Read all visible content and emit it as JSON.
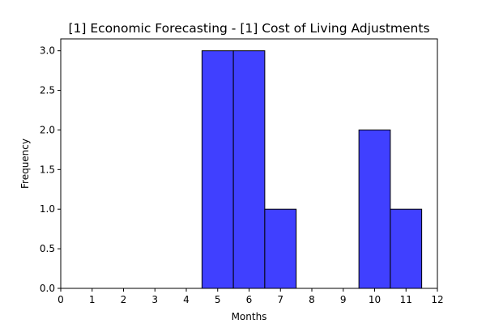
{
  "chart_data": {
    "type": "bar",
    "title": "[1] Economic Forecasting - [1] Cost of Living Adjustments",
    "xlabel": "Months",
    "ylabel": "Frequency",
    "xlim": [
      0,
      12
    ],
    "ylim": [
      0,
      3.15
    ],
    "bar_width": 1.0,
    "x": [
      5,
      6,
      7,
      8,
      9,
      10,
      11
    ],
    "values": [
      3,
      3,
      1,
      0,
      0,
      2,
      1
    ],
    "x_ticks": [
      "0",
      "1",
      "2",
      "3",
      "4",
      "5",
      "6",
      "7",
      "8",
      "9",
      "10",
      "11",
      "12"
    ],
    "y_ticks": [
      "0.0",
      "0.5",
      "1.0",
      "1.5",
      "2.0",
      "2.5",
      "3.0"
    ],
    "grid": false,
    "bar_color": "#4040ff",
    "edge_color": "#000000"
  }
}
